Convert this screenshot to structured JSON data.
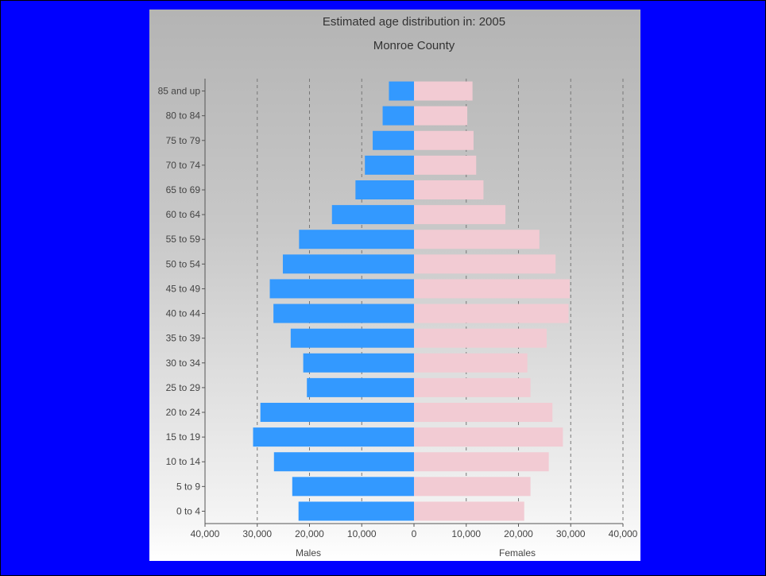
{
  "colors": {
    "background": "#0000ff",
    "males": "#3399ff",
    "females": "#f2cbd3",
    "gridline": "#777777"
  },
  "chart_data": {
    "type": "bar",
    "orientation": "horizontal-pyramid",
    "title": "Estimated age distribution in: 2005",
    "subtitle": "Monroe County",
    "categories": [
      "85 and up",
      "80 to 84",
      "75 to 79",
      "70 to 74",
      "65 to 69",
      "60 to 64",
      "55 to 59",
      "50 to 54",
      "45 to 49",
      "40 to 44",
      "35 to 39",
      "30 to 34",
      "25 to 29",
      "20 to 24",
      "15 to 19",
      "10 to 14",
      "5 to 9",
      "0 to 4"
    ],
    "series": [
      {
        "name": "Males",
        "values": [
          4800,
          6000,
          7900,
          9400,
          11200,
          15700,
          22000,
          25100,
          27600,
          26900,
          23600,
          21200,
          20500,
          29400,
          30800,
          26800,
          23300,
          22100
        ]
      },
      {
        "name": "Females",
        "values": [
          11200,
          10200,
          11400,
          11900,
          13300,
          17500,
          24000,
          27100,
          29800,
          29600,
          25400,
          21700,
          22300,
          26500,
          28500,
          25800,
          22300,
          21100
        ]
      }
    ],
    "xlim": [
      -40000,
      40000
    ],
    "x_ticks": [
      -40000,
      -30000,
      -20000,
      -10000,
      0,
      10000,
      20000,
      30000,
      40000
    ],
    "x_tick_labels": [
      "40,000",
      "30,000",
      "20,000",
      "10,000",
      "0",
      "10,000",
      "20,000",
      "30,000",
      "40,000"
    ],
    "xlabel_left": "Males",
    "xlabel_right": "Females",
    "grid": "vertical dashed"
  }
}
